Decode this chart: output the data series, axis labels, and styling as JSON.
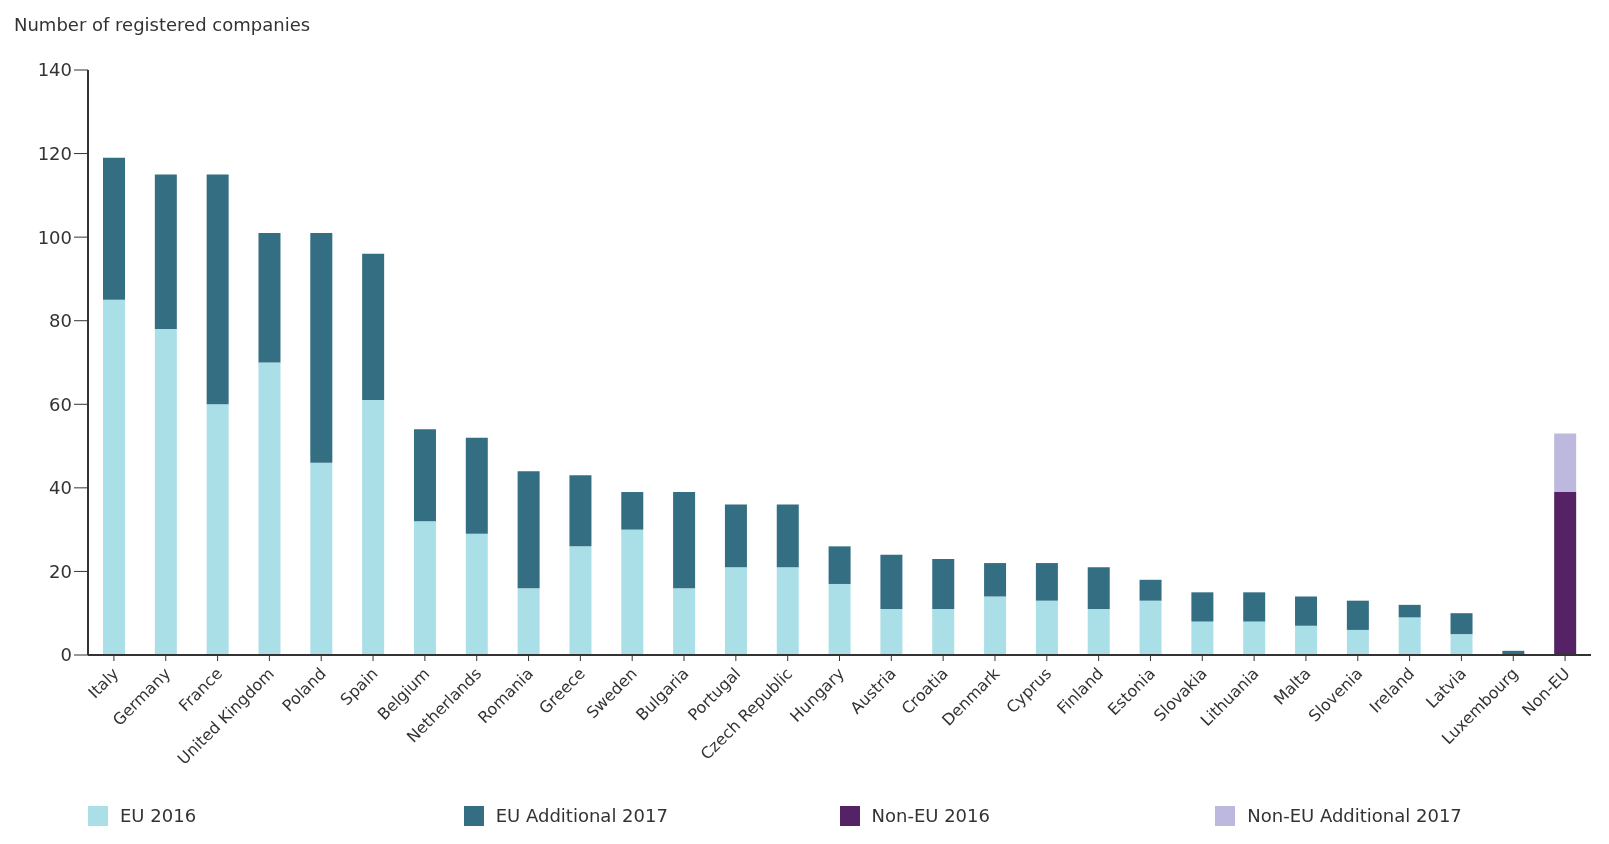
{
  "chart_data": {
    "type": "bar",
    "ylabel": "Number of registered companies",
    "stacked": true,
    "categories": [
      "Italy",
      "Germany",
      "France",
      "United Kingdom",
      "Poland",
      "Spain",
      "Belgium",
      "Netherlands",
      "Romania",
      "Greece",
      "Sweden",
      "Bulgaria",
      "Portugal",
      "Czech Republic",
      "Hungary",
      "Austria",
      "Croatia",
      "Denmark",
      "Cyprus",
      "Finland",
      "Estonia",
      "Slovakia",
      "Lithuania",
      "Malta",
      "Slovenia",
      "Ireland",
      "Latvia",
      "Luxembourg",
      "Non-EU"
    ],
    "series": [
      {
        "name": "EU 2016",
        "color": "#abdfe8",
        "values": [
          85,
          78,
          60,
          70,
          46,
          61,
          32,
          29,
          16,
          26,
          30,
          16,
          21,
          21,
          17,
          11,
          11,
          14,
          13,
          11,
          13,
          8,
          8,
          7,
          6,
          9,
          5,
          0,
          null
        ]
      },
      {
        "name": "EU Additional 2017",
        "color": "#336e82",
        "values": [
          34,
          37,
          55,
          31,
          55,
          35,
          22,
          23,
          28,
          17,
          9,
          23,
          15,
          15,
          9,
          13,
          12,
          8,
          9,
          10,
          5,
          7,
          7,
          7,
          7,
          3,
          5,
          1,
          null
        ]
      },
      {
        "name": "Non-EU 2016",
        "color": "#552266",
        "values": [
          null,
          null,
          null,
          null,
          null,
          null,
          null,
          null,
          null,
          null,
          null,
          null,
          null,
          null,
          null,
          null,
          null,
          null,
          null,
          null,
          null,
          null,
          null,
          null,
          null,
          null,
          null,
          null,
          39
        ]
      },
      {
        "name": "Non-EU Additional 2017",
        "color": "#bdb8dd",
        "values": [
          null,
          null,
          null,
          null,
          null,
          null,
          null,
          null,
          null,
          null,
          null,
          null,
          null,
          null,
          null,
          null,
          null,
          null,
          null,
          null,
          null,
          null,
          null,
          null,
          null,
          null,
          null,
          null,
          14
        ]
      }
    ],
    "ylim": [
      0,
      140
    ],
    "yticks": [
      0,
      20,
      40,
      60,
      80,
      100,
      120,
      140
    ],
    "legend": "bottom"
  }
}
